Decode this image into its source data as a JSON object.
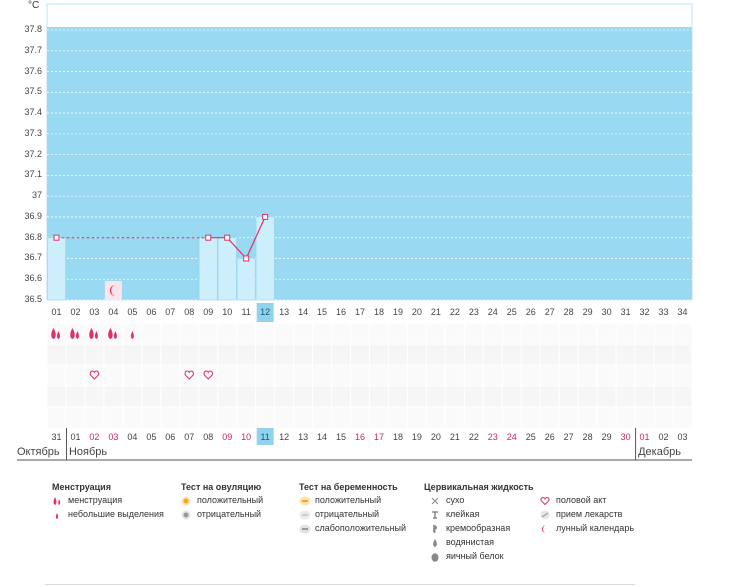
{
  "unit_label": "°C",
  "chart_data": {
    "type": "line",
    "title": "",
    "ylabel": "°C",
    "ylim": [
      36.5,
      37.9
    ],
    "yticks": [
      37.8,
      37.7,
      37.6,
      37.5,
      37.4,
      37.3,
      37.2,
      37.1,
      37,
      36.9,
      36.8,
      36.7,
      36.6,
      36.5
    ],
    "cycle_days": [
      "01",
      "02",
      "03",
      "04",
      "05",
      "06",
      "07",
      "08",
      "09",
      "10",
      "11",
      "12",
      "13",
      "14",
      "15",
      "16",
      "17",
      "18",
      "19",
      "20",
      "21",
      "22",
      "23",
      "24",
      "25",
      "26",
      "27",
      "28",
      "29",
      "30",
      "31",
      "32",
      "33",
      "34"
    ],
    "current_day": "12",
    "series": [
      {
        "points": [
          {
            "day": 1,
            "value": 36.8
          },
          {
            "day": 9,
            "value": 36.8
          },
          {
            "day": 10,
            "value": 36.8
          },
          {
            "day": 11,
            "value": 36.7
          },
          {
            "day": 12,
            "value": 36.9
          }
        ],
        "dashed_segments": [
          [
            1,
            9
          ]
        ]
      }
    ],
    "grid": true,
    "colors": {
      "plot_bg": "#99daf2",
      "bar": "#cdeefb",
      "line": "#e0316a",
      "highlight": "#91d3ec"
    }
  },
  "markers": {
    "moon_day": 4,
    "menstruation_days": [
      {
        "day": 1,
        "type": "heavy"
      },
      {
        "day": 2,
        "type": "heavy"
      },
      {
        "day": 3,
        "type": "heavy"
      },
      {
        "day": 4,
        "type": "heavy"
      },
      {
        "day": 5,
        "type": "light"
      }
    ],
    "intercourse_days": [
      3,
      8,
      9
    ]
  },
  "calendar": {
    "dates": [
      "31",
      "01",
      "02",
      "03",
      "04",
      "05",
      "06",
      "07",
      "08",
      "09",
      "10",
      "11",
      "12",
      "13",
      "14",
      "15",
      "16",
      "17",
      "18",
      "19",
      "20",
      "21",
      "22",
      "23",
      "24",
      "25",
      "26",
      "27",
      "28",
      "29",
      "30",
      "01",
      "02",
      "03"
    ],
    "red_dates": [
      2,
      3,
      9,
      10,
      16,
      17,
      23,
      24,
      30,
      31
    ],
    "current_index": 11,
    "months": [
      {
        "label": "Октябрь",
        "start_index": 0
      },
      {
        "label": "Ноябрь",
        "start_index": 1
      },
      {
        "label": "Декабрь",
        "start_index": 31
      }
    ]
  },
  "legend": {
    "menstruation": {
      "title": "Менструация",
      "items": [
        {
          "label": "менструация",
          "icon": "drop-double-icon"
        },
        {
          "label": "небольшие выделения",
          "icon": "drop-small-icon"
        }
      ]
    },
    "ovulation": {
      "title": "Тест на овуляцию",
      "items": [
        {
          "label": "положительный",
          "icon": "orange-circle-icon"
        },
        {
          "label": "отрицательный",
          "icon": "gray-circle-icon"
        }
      ]
    },
    "pregnancy": {
      "title": "Тест на беременность",
      "items": [
        {
          "label": "положительный",
          "icon": "orange-stick-icon"
        },
        {
          "label": "отрицательный",
          "icon": "gray-stick-icon"
        },
        {
          "label": "слабоположительный",
          "icon": "faint-stick-icon"
        }
      ]
    },
    "cervical": {
      "title": "Цервикальная жидкость",
      "items": [
        {
          "label": "сухо",
          "icon": "cross-icon"
        },
        {
          "label": "клейкая",
          "icon": "t-icon"
        },
        {
          "label": "кремообразная",
          "icon": "cream-icon"
        },
        {
          "label": "водянистая",
          "icon": "water-drop-icon"
        },
        {
          "label": "яичный белок",
          "icon": "egg-icon"
        }
      ]
    },
    "other": {
      "items": [
        {
          "label": "половой акт",
          "icon": "heart-icon"
        },
        {
          "label": "прием лекарств",
          "icon": "pill-icon"
        },
        {
          "label": "лунный календарь",
          "icon": "moon-icon"
        }
      ]
    }
  }
}
